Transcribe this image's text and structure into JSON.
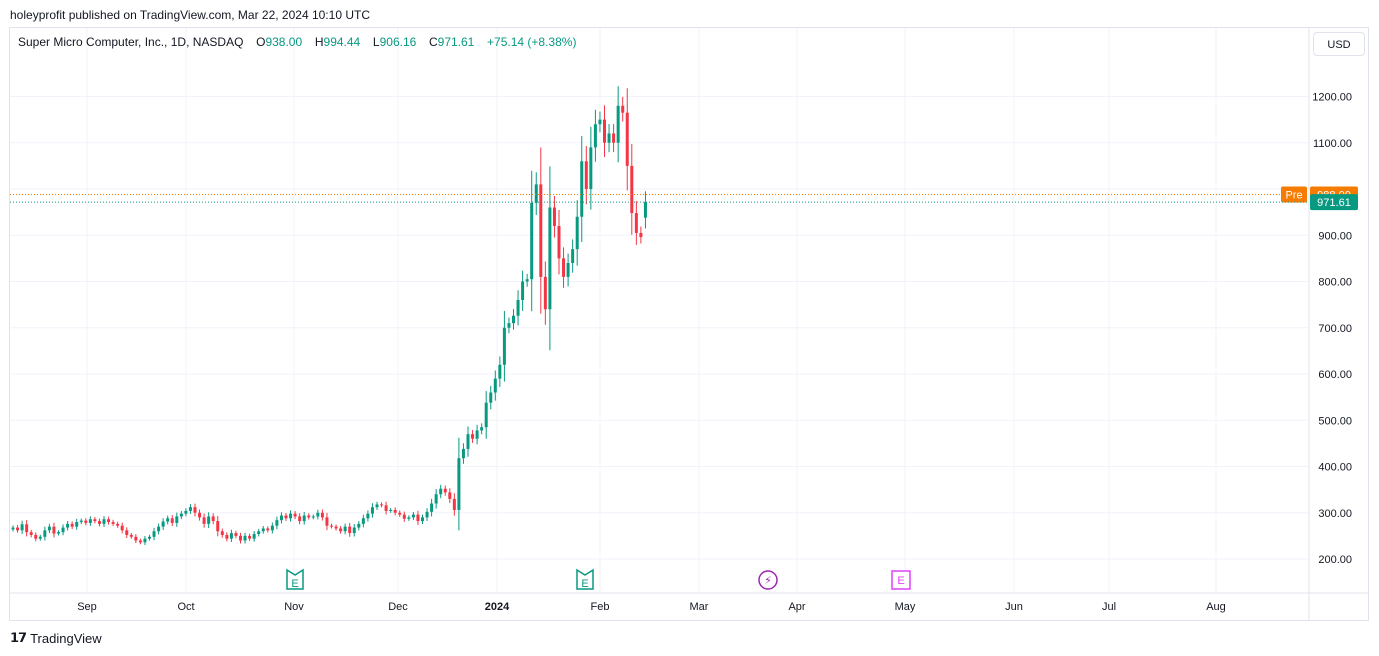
{
  "header": {
    "published": "holeyprofit published on TradingView.com, Mar 22, 2024 10:10 UTC"
  },
  "legend": {
    "symbol": "Super Micro Computer, Inc., 1D, NASDAQ",
    "o_label": "O",
    "o_value": "938.00",
    "h_label": "H",
    "h_value": "994.44",
    "l_label": "L",
    "l_value": "906.16",
    "c_label": "C",
    "c_value": "971.61",
    "change": "+75.14 (+8.38%)"
  },
  "currency_button": "USD",
  "footer": {
    "brand": "TradingView"
  },
  "colors": {
    "up": "#089981",
    "down": "#f23645",
    "pre": "#f57c00",
    "grid": "#f0f3fa"
  },
  "chart_data": {
    "type": "candlestick",
    "y_ticks": [
      "200.00",
      "300.00",
      "400.00",
      "500.00",
      "600.00",
      "700.00",
      "800.00",
      "900.00",
      "1000.00",
      "1100.00",
      "1200.00"
    ],
    "y_tick_values": [
      200,
      300,
      400,
      500,
      600,
      700,
      800,
      900,
      1000,
      1100,
      1200
    ],
    "x_ticks": [
      "Sep",
      "Oct",
      "Nov",
      "Dec",
      "2024",
      "Feb",
      "Mar",
      "Apr",
      "May",
      "Jun",
      "Jul",
      "Aug"
    ],
    "price_tags": [
      {
        "label": "Pre",
        "value": 988.0,
        "text": "988.00"
      },
      {
        "label": "",
        "value": 971.61,
        "text": "971.61"
      }
    ],
    "event_markers": [
      {
        "type": "earnings",
        "glyph": "E",
        "date": "Nov"
      },
      {
        "type": "earnings",
        "glyph": "E",
        "date": "late Jan"
      },
      {
        "type": "dividend",
        "glyph": "⚡",
        "date": "late Mar"
      },
      {
        "type": "earnings-upcoming",
        "glyph": "E",
        "date": "end Apr"
      }
    ],
    "closes": [
      268,
      262,
      275,
      258,
      252,
      244,
      248,
      262,
      270,
      255,
      258,
      268,
      276,
      270,
      280,
      283,
      278,
      286,
      282,
      276,
      286,
      280,
      276,
      272,
      262,
      252,
      248,
      240,
      236,
      244,
      248,
      260,
      270,
      281,
      288,
      278,
      292,
      298,
      304,
      312,
      300,
      290,
      276,
      292,
      282,
      260,
      252,
      244,
      256,
      250,
      240,
      250,
      244,
      254,
      260,
      266,
      262,
      272,
      284,
      294,
      288,
      298,
      292,
      282,
      294,
      290,
      292,
      300,
      290,
      272,
      270,
      266,
      260,
      270,
      256,
      268,
      276,
      288,
      298,
      312,
      318,
      316,
      304,
      306,
      300,
      296,
      287,
      290,
      296,
      282,
      290,
      302,
      320,
      340,
      352,
      344,
      330,
      306,
      418,
      438,
      470,
      460,
      478,
      485,
      538,
      560,
      590,
      620,
      700,
      710,
      726,
      760,
      800,
      805,
      970,
      1010,
      810,
      740,
      960,
      920,
      850,
      810,
      840,
      870,
      940,
      1060,
      1000,
      1090,
      1140,
      1150,
      1100,
      1120,
      1100,
      1180,
      1165,
      1050,
      948,
      905,
      896,
      971.61
    ]
  }
}
